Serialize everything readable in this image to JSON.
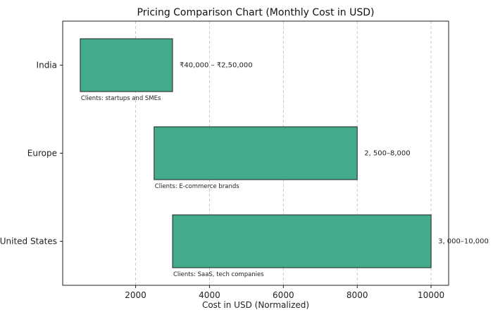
{
  "chart_data": {
    "type": "bar",
    "orientation": "horizontal-floating",
    "title": "Pricing Comparison Chart (Monthly Cost in USD)",
    "xlabel": "Cost in USD (Normalized)",
    "ylabel": "",
    "xlim": [
      25,
      10475
    ],
    "xticks": [
      2000,
      4000,
      6000,
      8000,
      10000
    ],
    "grid": "x, dashed",
    "bar_color": "#43aa8b",
    "categories": [
      "India",
      "Europe",
      "United States"
    ],
    "series": [
      {
        "start": [
          500,
          2500,
          3000
        ],
        "end": [
          3000,
          8000,
          10000
        ],
        "range_labels": [
          "₹40,000 – ₹2,50,000",
          "2, 500–8,000",
          "3, 000–10,000"
        ],
        "client_labels": [
          "Clients: startups and SMEs",
          "Clients: E-commerce brands",
          "Clients: SaaS, tech companies"
        ]
      }
    ]
  }
}
